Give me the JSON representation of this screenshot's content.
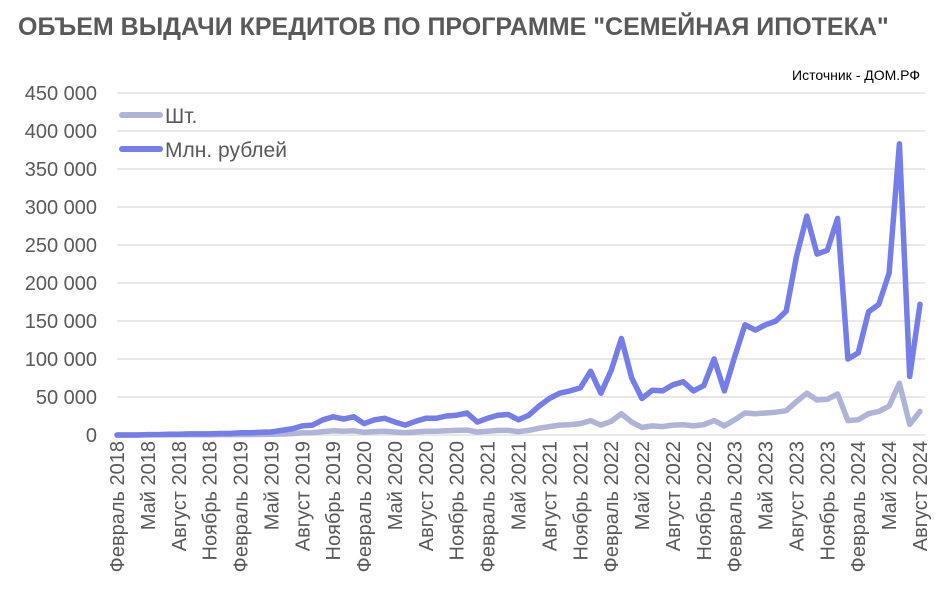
{
  "chart_data": {
    "type": "line",
    "title": "ОБЪЕМ ВЫДАЧИ КРЕДИТОВ ПО ПРОГРАММЕ \"СЕМЕЙНАЯ ИПОТЕКА\"",
    "source": "Источник - ДОМ.РФ",
    "xlabel": "",
    "ylabel": "",
    "ylim": [
      0,
      450000
    ],
    "yticks": [
      0,
      50000,
      100000,
      150000,
      200000,
      250000,
      300000,
      350000,
      400000,
      450000
    ],
    "ytick_labels": [
      "0",
      "50 000",
      "100 000",
      "150 000",
      "200 000",
      "250 000",
      "300 000",
      "350 000",
      "400 000",
      "450 000"
    ],
    "x_start": "Февраль 2018",
    "x_end": "Август 2024",
    "x_points": 79,
    "xtick_labels": [
      "Февраль 2018",
      "Май 2018",
      "Август 2018",
      "Ноябрь 2018",
      "Февраль 2019",
      "Май 2019",
      "Август 2019",
      "Ноябрь 2019",
      "Февраль 2020",
      "Май 2020",
      "Август 2020",
      "Ноябрь 2020",
      "Февраль 2021",
      "Май 2021",
      "Август 2021",
      "Ноябрь 2021",
      "Февраль 2022",
      "Май 2022",
      "Август 2022",
      "Ноябрь 2022",
      "Февраль 2023",
      "Май 2023",
      "Август 2023",
      "Ноябрь 2023",
      "Февраль 2024",
      "Май 2024",
      "Август 2024"
    ],
    "grid": true,
    "legend_position": "top-left",
    "series": [
      {
        "name": "Шт.",
        "color": "#B0B3D8",
        "values": [
          0,
          0,
          0,
          200,
          200,
          300,
          300,
          400,
          400,
          400,
          500,
          500,
          700,
          700,
          800,
          900,
          1300,
          1800,
          2700,
          3000,
          4500,
          5500,
          5000,
          5500,
          3500,
          4500,
          5000,
          4000,
          3000,
          4000,
          5000,
          5000,
          5500,
          6000,
          6500,
          4000,
          5000,
          6000,
          6000,
          4500,
          6000,
          9000,
          11000,
          13000,
          13500,
          15000,
          19000,
          13000,
          18000,
          28000,
          17000,
          10000,
          12000,
          11000,
          13000,
          13500,
          12000,
          13500,
          19000,
          12000,
          20000,
          29000,
          28000,
          29000,
          30000,
          32000,
          44000,
          55000,
          46000,
          47000,
          54000,
          19000,
          20000,
          28000,
          31000,
          38000,
          68000,
          14000,
          31000
        ]
      },
      {
        "name": "Млн. рублей",
        "color": "#757DE8",
        "values": [
          0,
          0,
          0,
          500,
          500,
          1000,
          1000,
          1500,
          1500,
          1500,
          2000,
          2000,
          3000,
          3000,
          3500,
          4000,
          6000,
          8000,
          12000,
          13000,
          20000,
          24000,
          21000,
          24000,
          15000,
          20000,
          22000,
          17000,
          13000,
          18000,
          22000,
          22000,
          25000,
          26000,
          29000,
          17000,
          22000,
          26000,
          27000,
          20000,
          26000,
          38000,
          48000,
          55000,
          58000,
          62000,
          84000,
          55000,
          85000,
          127000,
          75000,
          48000,
          59000,
          58000,
          66000,
          70000,
          58000,
          65000,
          100000,
          58000,
          103000,
          145000,
          138000,
          145000,
          150000,
          163000,
          235000,
          288000,
          238000,
          243000,
          285000,
          100000,
          108000,
          162000,
          172000,
          213000,
          383000,
          77000,
          172000
        ]
      }
    ]
  }
}
